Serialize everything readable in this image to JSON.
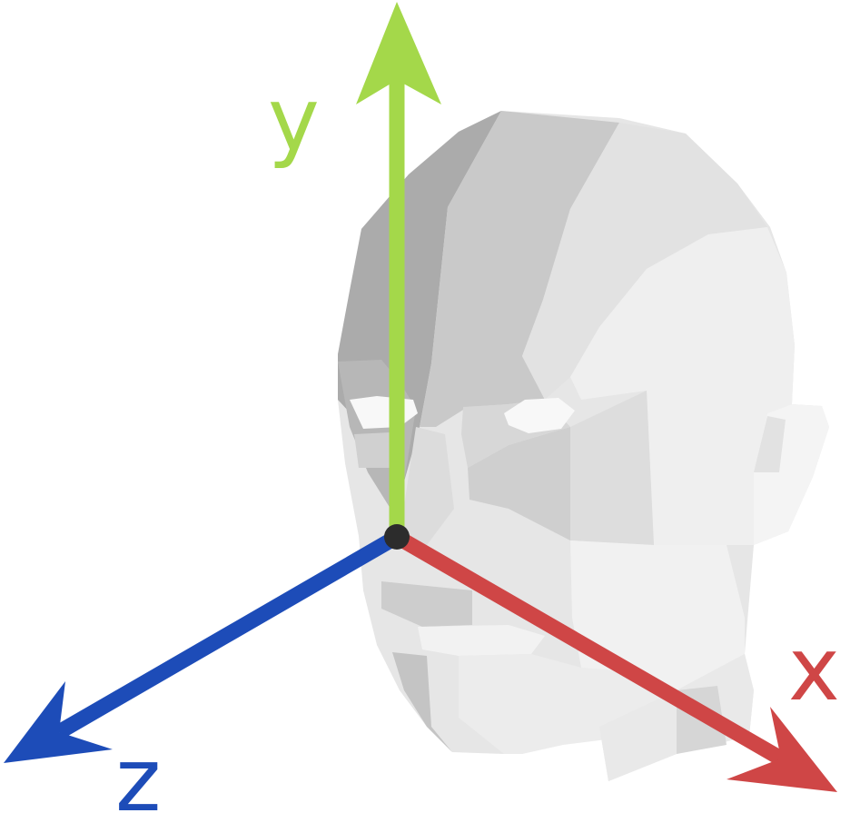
{
  "axes": {
    "y": {
      "label": "y",
      "color": "#a4d84a"
    },
    "x": {
      "label": "x",
      "color": "#cf4646"
    },
    "z": {
      "label": "z",
      "color": "#1d4cb8"
    }
  },
  "origin": {
    "color": "#2c2c2c"
  },
  "head": {
    "palette": [
      "#ababab",
      "#c0c0c0",
      "#cdcdcd",
      "#d9d9d9",
      "#e5e5e5",
      "#eeeeee",
      "#f4f4f4",
      "#f8f8f8"
    ]
  }
}
